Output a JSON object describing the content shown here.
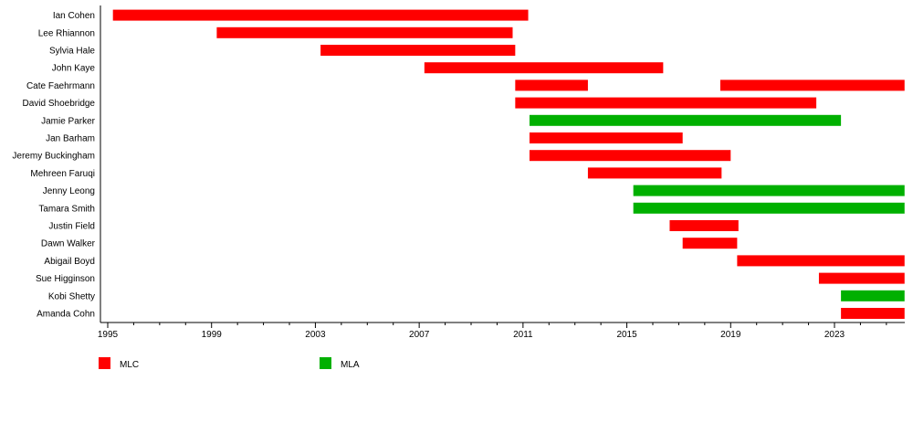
{
  "chart_data": {
    "type": "timeline",
    "xlim": [
      1995,
      2025.7
    ],
    "xticks": [
      "1995",
      "1999",
      "2003",
      "2007",
      "2011",
      "2015",
      "2019",
      "2023"
    ],
    "minor_tick_step_years": 1,
    "colors": {
      "MLC": "#ff0000",
      "MLA": "#00b000"
    },
    "legend": [
      {
        "name": "MLC",
        "color": "#ff0000"
      },
      {
        "name": "MLA",
        "color": "#00b000"
      }
    ],
    "legend_placement": "bottom-left",
    "rows": [
      {
        "name": "Ian Cohen",
        "terms": [
          {
            "start": 1995.2,
            "end": 2011.2,
            "house": "MLC"
          }
        ]
      },
      {
        "name": "Lee Rhiannon",
        "terms": [
          {
            "start": 1999.2,
            "end": 2010.6,
            "house": "MLC"
          }
        ]
      },
      {
        "name": "Sylvia Hale",
        "terms": [
          {
            "start": 2003.2,
            "end": 2010.7,
            "house": "MLC"
          }
        ]
      },
      {
        "name": "John Kaye",
        "terms": [
          {
            "start": 2007.2,
            "end": 2016.4,
            "house": "MLC"
          }
        ]
      },
      {
        "name": "Cate Faehrmann",
        "terms": [
          {
            "start": 2010.7,
            "end": 2013.5,
            "house": "MLC"
          },
          {
            "start": 2018.6,
            "end": 2025.7,
            "house": "MLC"
          }
        ]
      },
      {
        "name": "David Shoebridge",
        "terms": [
          {
            "start": 2010.7,
            "end": 2022.3,
            "house": "MLC"
          }
        ]
      },
      {
        "name": "Jamie Parker",
        "terms": [
          {
            "start": 2011.25,
            "end": 2023.25,
            "house": "MLA"
          }
        ]
      },
      {
        "name": "Jan Barham",
        "terms": [
          {
            "start": 2011.25,
            "end": 2017.15,
            "house": "MLC"
          }
        ]
      },
      {
        "name": "Jeremy Buckingham",
        "terms": [
          {
            "start": 2011.25,
            "end": 2019.0,
            "house": "MLC"
          }
        ]
      },
      {
        "name": "Mehreen Faruqi",
        "terms": [
          {
            "start": 2013.5,
            "end": 2018.65,
            "house": "MLC"
          }
        ]
      },
      {
        "name": "Jenny Leong",
        "terms": [
          {
            "start": 2015.25,
            "end": 2025.7,
            "house": "MLA"
          }
        ]
      },
      {
        "name": "Tamara Smith",
        "terms": [
          {
            "start": 2015.25,
            "end": 2025.7,
            "house": "MLA"
          }
        ]
      },
      {
        "name": "Justin Field",
        "terms": [
          {
            "start": 2016.65,
            "end": 2019.3,
            "house": "MLC"
          }
        ]
      },
      {
        "name": "Dawn Walker",
        "terms": [
          {
            "start": 2017.15,
            "end": 2019.25,
            "house": "MLC"
          }
        ]
      },
      {
        "name": "Abigail Boyd",
        "terms": [
          {
            "start": 2019.25,
            "end": 2025.7,
            "house": "MLC"
          }
        ]
      },
      {
        "name": "Sue Higginson",
        "terms": [
          {
            "start": 2022.4,
            "end": 2025.7,
            "house": "MLC"
          }
        ]
      },
      {
        "name": "Kobi Shetty",
        "terms": [
          {
            "start": 2023.25,
            "end": 2025.7,
            "house": "MLA"
          }
        ]
      },
      {
        "name": "Amanda Cohn",
        "terms": [
          {
            "start": 2023.25,
            "end": 2025.7,
            "house": "MLC"
          }
        ]
      }
    ]
  }
}
